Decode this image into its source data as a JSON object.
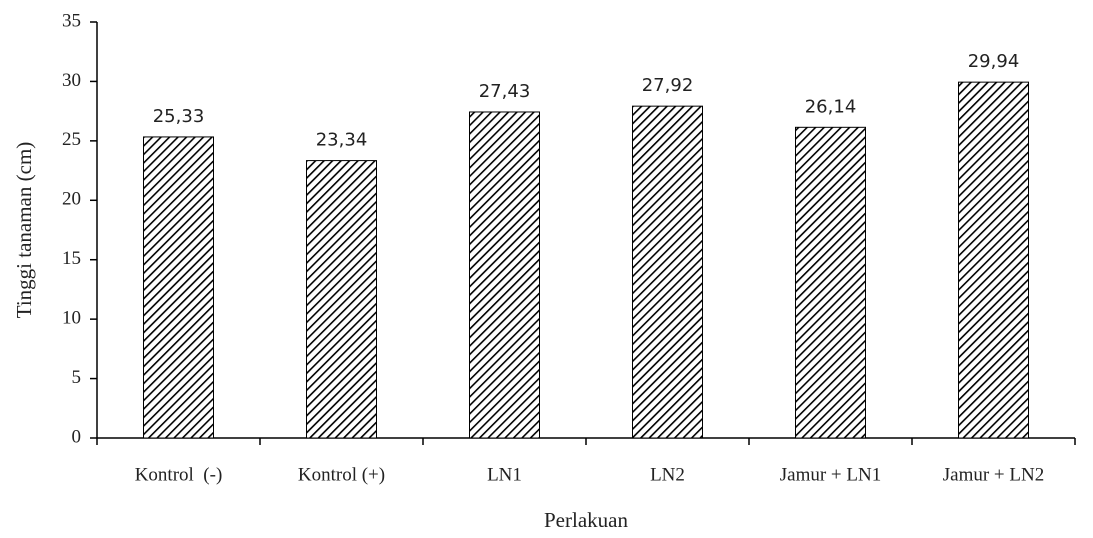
{
  "chart_data": {
    "type": "bar",
    "y_label": "Tinggi tanaman (cm)",
    "x_label": "Perlakuan",
    "categories": [
      "Kontrol  (-)",
      "Kontrol (+)",
      "LN1",
      "LN2",
      "Jamur + LN1",
      "Jamur + LN2"
    ],
    "values": [
      25.33,
      23.34,
      27.43,
      27.92,
      26.14,
      29.94
    ],
    "value_labels": [
      "25,33",
      "23,34",
      "27,43",
      "27,92",
      "26,14",
      "29,94"
    ],
    "color": "#000000",
    "ylim": [
      0,
      35
    ],
    "yticks": [
      0,
      5,
      10,
      15,
      20,
      25,
      30,
      35
    ],
    "grid": false
  }
}
